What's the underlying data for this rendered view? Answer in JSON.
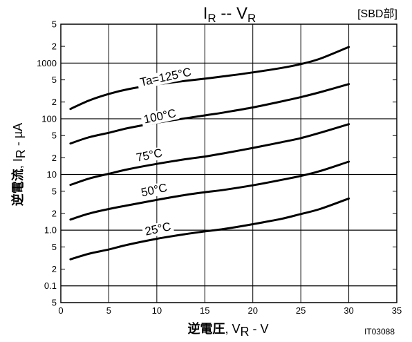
{
  "chart_data": {
    "type": "line",
    "title": {
      "main": "I",
      "main_sub": "R",
      "sep": " -- ",
      "second": "V",
      "second_sub": "R"
    },
    "tag": "[SBD部]",
    "xlabel": {
      "bold": "逆電圧",
      "rest": ", V",
      "sub": "R",
      "unit": " - V"
    },
    "ylabel": {
      "bold": "逆電流",
      "rest": ", I",
      "sub": "R",
      "unit": " - µA"
    },
    "code": "IT03088",
    "y_scale": "log",
    "xlim": [
      0,
      35
    ],
    "ylim": [
      0.05,
      5000
    ],
    "grid": true,
    "x_ticks": [
      {
        "value": 0,
        "label": "0"
      },
      {
        "value": 5,
        "label": "5"
      },
      {
        "value": 10,
        "label": "10"
      },
      {
        "value": 15,
        "label": "15"
      },
      {
        "value": 20,
        "label": "20"
      },
      {
        "value": 25,
        "label": "25"
      },
      {
        "value": 30,
        "label": "30"
      },
      {
        "value": 35,
        "label": "35"
      }
    ],
    "y_major_ticks": [
      {
        "value": 0.1,
        "label": "0.1"
      },
      {
        "value": 1,
        "label": "1.0"
      },
      {
        "value": 10,
        "label": "10"
      },
      {
        "value": 100,
        "label": "100"
      },
      {
        "value": 1000,
        "label": "1000"
      }
    ],
    "y_minor_ticks": [
      {
        "value": 0.05,
        "label": "5"
      },
      {
        "value": 0.2,
        "label": "2"
      },
      {
        "value": 0.5,
        "label": "5"
      },
      {
        "value": 2,
        "label": "2"
      },
      {
        "value": 5,
        "label": "5"
      },
      {
        "value": 20,
        "label": "2"
      },
      {
        "value": 50,
        "label": "5"
      },
      {
        "value": 200,
        "label": "2"
      },
      {
        "value": 500,
        "label": "5"
      },
      {
        "value": 2000,
        "label": "2"
      },
      {
        "value": 5000,
        "label": "5"
      }
    ],
    "series": [
      {
        "name": "Ta=125°C",
        "label_at": [
          11,
          480
        ],
        "x": [
          1,
          3,
          5,
          7,
          10,
          13,
          15,
          17,
          20,
          23,
          25,
          27,
          30
        ],
        "y": [
          150,
          215,
          280,
          340,
          415,
          480,
          525,
          580,
          680,
          820,
          960,
          1200,
          1950
        ]
      },
      {
        "name": "100°C",
        "label_at": [
          10.4,
          95
        ],
        "x": [
          1,
          3,
          5,
          7,
          10,
          13,
          15,
          17,
          20,
          23,
          25,
          27,
          30
        ],
        "y": [
          36,
          47,
          56,
          68,
          85,
          102,
          115,
          130,
          160,
          205,
          245,
          300,
          420
        ]
      },
      {
        "name": "75°C",
        "label_at": [
          9.3,
          19
        ],
        "x": [
          1,
          3,
          5,
          7,
          10,
          13,
          15,
          17,
          20,
          23,
          25,
          27,
          30
        ],
        "y": [
          6.5,
          8.5,
          10.3,
          12.4,
          15.5,
          18.8,
          21,
          24,
          30,
          38,
          45,
          56,
          80
        ]
      },
      {
        "name": "50°C",
        "label_at": [
          9.8,
          4.5
        ],
        "x": [
          1,
          3,
          5,
          7,
          10,
          13,
          15,
          17,
          20,
          23,
          25,
          27,
          30
        ],
        "y": [
          1.55,
          2.0,
          2.4,
          2.8,
          3.5,
          4.3,
          4.8,
          5.3,
          6.4,
          8.0,
          9.4,
          11.5,
          17
        ]
      },
      {
        "name": "25°C",
        "label_at": [
          10.2,
          0.9
        ],
        "x": [
          1,
          3,
          5,
          7,
          10,
          13,
          15,
          17,
          20,
          23,
          25,
          27,
          30
        ],
        "y": [
          0.3,
          0.38,
          0.45,
          0.55,
          0.7,
          0.85,
          0.95,
          1.05,
          1.28,
          1.6,
          1.95,
          2.4,
          3.7
        ]
      }
    ]
  }
}
